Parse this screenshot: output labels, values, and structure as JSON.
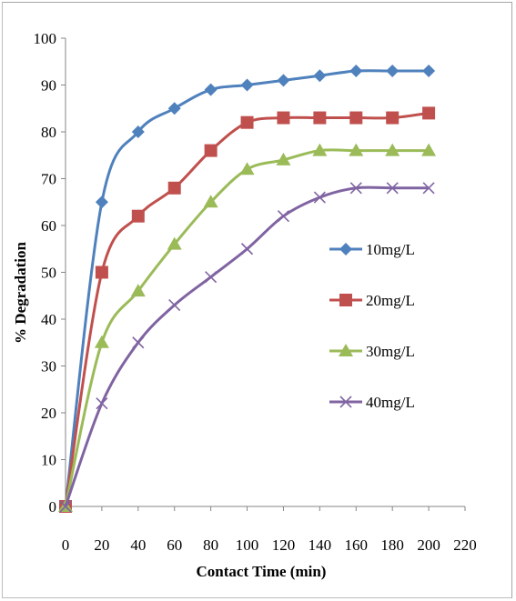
{
  "chart_data": {
    "type": "line",
    "title": "",
    "xlabel": "Contact Time (min)",
    "ylabel": "% Degradation",
    "xlim": [
      0,
      220
    ],
    "ylim": [
      0,
      100
    ],
    "xticks": [
      0,
      20,
      40,
      60,
      80,
      100,
      120,
      140,
      160,
      180,
      200,
      220
    ],
    "yticks": [
      0,
      10,
      20,
      30,
      40,
      50,
      60,
      70,
      80,
      90,
      100
    ],
    "grid": false,
    "legend_position": "right",
    "x": [
      0,
      20,
      40,
      60,
      80,
      100,
      120,
      140,
      160,
      180,
      200
    ],
    "series": [
      {
        "name": "10mg/L",
        "color": "#4f81bd",
        "marker": "diamond",
        "values": [
          0,
          65,
          80,
          85,
          89,
          90,
          91,
          92,
          93,
          93,
          93
        ]
      },
      {
        "name": "20mg/L",
        "color": "#c0504d",
        "marker": "square",
        "values": [
          0,
          50,
          62,
          68,
          76,
          82,
          83,
          83,
          83,
          83,
          84
        ]
      },
      {
        "name": "30mg/L",
        "color": "#9bbb59",
        "marker": "triangle",
        "values": [
          0,
          35,
          46,
          56,
          65,
          72,
          74,
          76,
          76,
          76,
          76
        ]
      },
      {
        "name": "40mg/L",
        "color": "#8064a2",
        "marker": "x",
        "values": [
          0,
          22,
          35,
          43,
          49,
          55,
          62,
          66,
          68,
          68,
          68
        ]
      }
    ]
  }
}
